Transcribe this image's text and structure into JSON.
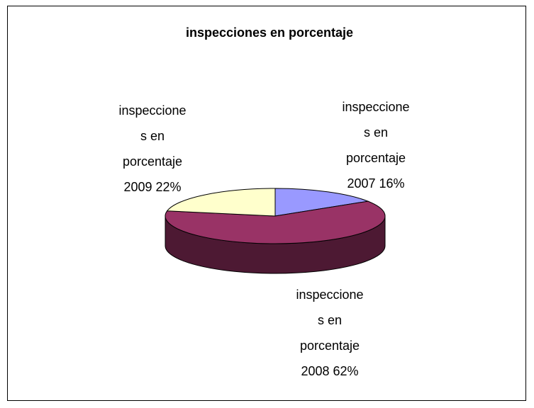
{
  "chart_data": {
    "type": "pie3d",
    "title": "inspecciones en porcentaje",
    "series_name": "inspecciones en porcentaje",
    "categories": [
      "2007",
      "2008",
      "2009"
    ],
    "values": [
      16,
      62,
      22
    ],
    "value_labels": [
      "16%",
      "62%",
      "22%"
    ],
    "colors": [
      "#9999ff",
      "#993366",
      "#ffffcc"
    ],
    "side_colors": [
      "#4d4d80",
      "#4d1933",
      "#80806a"
    ]
  }
}
